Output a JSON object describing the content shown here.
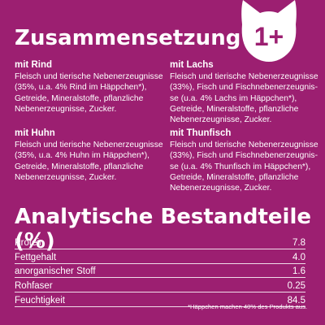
{
  "title": "Zusammensetzung",
  "badge": {
    "label": "1+",
    "icon": "cat-head-icon"
  },
  "sections": [
    {
      "title": "mit Rind",
      "text": "Fleisch und tierische Nebenerzeugnisse (35%, u.a. 4% Rind im Häppchen*), Getreide, Mineralstoffe, pflanzliche Nebenerzeugnisse, Zucker."
    },
    {
      "title": "mit Lachs",
      "text": "Fleisch und tierische Nebenerzeugnisse (33%), Fisch und Fischnebenerzeugnis-se (u.a. 4% Lachs im Häppchen*), Getreide, Mineralstoffe, pflanzliche Nebenerzeugnisse, Zucker."
    },
    {
      "title": "mit Huhn",
      "text": "Fleisch und tierische Nebenerzeugnisse (35%, u.a. 4% Huhn im Häppchen*), Getreide, Mineralstoffe, pflanzliche Nebenerzeugnisse, Zucker."
    },
    {
      "title": "mit Thunfisch",
      "text": "Fleisch und tierische Nebenerzeugnisse (33%), Fisch und Fischnebenerzeugnis-se (u.a. 4% Thunfisch im Häppchen*), Getreide, Mineralstoffe, pflanzliche Nebenerzeugnisse, Zucker."
    }
  ],
  "analysis": {
    "title": "Analytische Bestandteile (%)",
    "rows": [
      {
        "label": "Protein",
        "value": "7.8"
      },
      {
        "label": "Fettgehalt",
        "value": "4.0"
      },
      {
        "label": "anorganischer Stoff",
        "value": "1.6"
      },
      {
        "label": "Rohfaser",
        "value": "0.25"
      },
      {
        "label": "Feuchtigkeit",
        "value": "84.5"
      }
    ]
  },
  "footnote": "*Häppchen machen 40% des Produkts aus.",
  "colors": {
    "background": "#9c1f71",
    "text": "#ffffff",
    "badge_text": "#9c1f71"
  }
}
